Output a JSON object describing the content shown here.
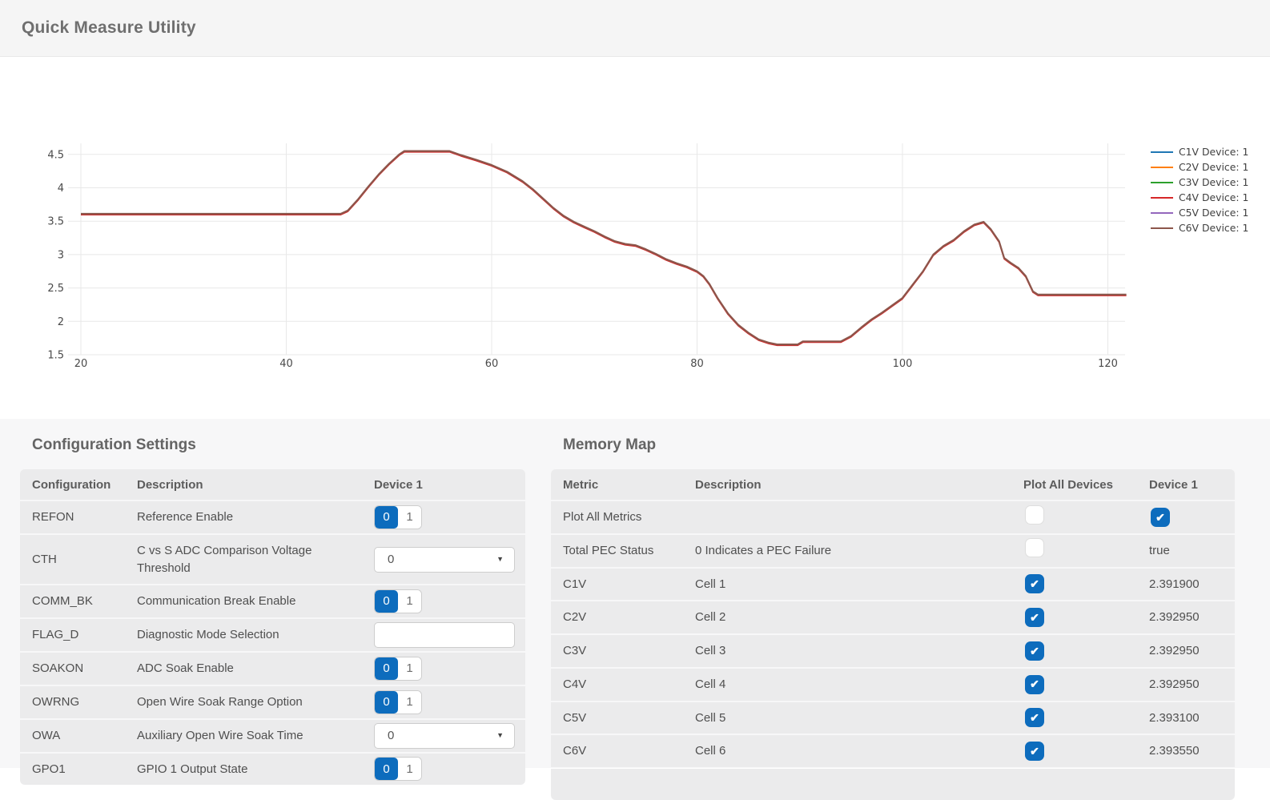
{
  "header": {
    "title": "Quick Measure Utility"
  },
  "chart_data": {
    "type": "line",
    "title": "",
    "xlabel": "",
    "ylabel": "",
    "x_ticks": [
      20,
      40,
      60,
      80,
      100,
      120
    ],
    "y_ticks": [
      1.5,
      2,
      2.5,
      3,
      3.5,
      4,
      4.5
    ],
    "xlim": [
      18.8,
      122
    ],
    "ylim": [
      1.5,
      4.73
    ],
    "grid": true,
    "legend_position": "right",
    "note": "Six series (C1V..C6V) overlap almost exactly; visible top trace is C6V (brown).",
    "series": [
      {
        "name": "C1V Device: 1",
        "color": "#1f77b4"
      },
      {
        "name": "C2V Device: 1",
        "color": "#ff7f0e"
      },
      {
        "name": "C3V Device: 1",
        "color": "#2ca02c"
      },
      {
        "name": "C4V Device: 1",
        "color": "#d62728"
      },
      {
        "name": "C5V Device: 1",
        "color": "#9467bd"
      },
      {
        "name": "C6V Device: 1",
        "color": "#8c564b"
      }
    ],
    "x": [
      20,
      45.3,
      46,
      47,
      48,
      49,
      50,
      51,
      51.5,
      55.9,
      57,
      58.5,
      60,
      61.5,
      63,
      64,
      65,
      66,
      67,
      68,
      69,
      70,
      71,
      72,
      73,
      74,
      75,
      76,
      77,
      78,
      79,
      80,
      80.6,
      81.2,
      82,
      83,
      84,
      85,
      86,
      87,
      87.8,
      89.8,
      90.3,
      94,
      95,
      96,
      97,
      98,
      99,
      100,
      101,
      102,
      103,
      104,
      105,
      106,
      107,
      107.9,
      108.6,
      109.4,
      109.9,
      110.5,
      111.3,
      112,
      112.7,
      113.2,
      121.8
    ],
    "values": [
      3.61,
      3.61,
      3.66,
      3.83,
      4.02,
      4.2,
      4.36,
      4.5,
      4.55,
      4.55,
      4.49,
      4.42,
      4.34,
      4.24,
      4.1,
      3.98,
      3.84,
      3.7,
      3.58,
      3.49,
      3.42,
      3.35,
      3.27,
      3.2,
      3.16,
      3.14,
      3.08,
      3.01,
      2.93,
      2.87,
      2.82,
      2.75,
      2.68,
      2.56,
      2.35,
      2.12,
      1.95,
      1.83,
      1.73,
      1.68,
      1.655,
      1.655,
      1.7,
      1.7,
      1.78,
      1.91,
      2.03,
      2.13,
      2.24,
      2.35,
      2.55,
      2.75,
      3.0,
      3.13,
      3.22,
      3.35,
      3.45,
      3.49,
      3.38,
      3.2,
      2.95,
      2.88,
      2.8,
      2.68,
      2.45,
      2.4,
      2.4
    ]
  },
  "config_table": {
    "title": "Configuration Settings",
    "columns": [
      "Configuration",
      "Description",
      "Device 1"
    ],
    "rows": [
      {
        "name": "REFON",
        "desc": "Reference Enable",
        "control": "toggle",
        "options": [
          "0",
          "1"
        ],
        "selected": "0"
      },
      {
        "name": "CTH",
        "desc": "C vs S ADC Comparison Voltage Threshold",
        "control": "dropdown",
        "value": "0"
      },
      {
        "name": "COMM_BK",
        "desc": "Communication Break Enable",
        "control": "toggle",
        "options": [
          "0",
          "1"
        ],
        "selected": "0"
      },
      {
        "name": "FLAG_D",
        "desc": "Diagnostic Mode Selection",
        "control": "input",
        "value": ""
      },
      {
        "name": "SOAKON",
        "desc": "ADC Soak Enable",
        "control": "toggle",
        "options": [
          "0",
          "1"
        ],
        "selected": "0"
      },
      {
        "name": "OWRNG",
        "desc": "Open Wire Soak Range Option",
        "control": "toggle",
        "options": [
          "0",
          "1"
        ],
        "selected": "0"
      },
      {
        "name": "OWA",
        "desc": "Auxiliary Open Wire Soak Time",
        "control": "dropdown",
        "value": "0"
      },
      {
        "name": "GPO1",
        "desc": "GPIO 1 Output State",
        "control": "toggle",
        "options": [
          "0",
          "1"
        ],
        "selected": "0"
      }
    ]
  },
  "memory_table": {
    "title": "Memory Map",
    "columns": [
      "Metric",
      "Description",
      "Plot All Devices",
      "Device 1"
    ],
    "rows": [
      {
        "metric": "Plot All Metrics",
        "desc": "",
        "plot_all": {
          "type": "checkbox",
          "checked": false
        },
        "device1": {
          "type": "checkbox",
          "checked": true
        }
      },
      {
        "metric": "Total PEC Status",
        "desc": "0 Indicates a PEC Failure",
        "plot_all": {
          "type": "checkbox",
          "checked": false
        },
        "device1": {
          "type": "text",
          "value": "true"
        }
      },
      {
        "metric": "C1V",
        "desc": "Cell 1",
        "plot_all": {
          "type": "checkbox",
          "checked": true
        },
        "device1": {
          "type": "text",
          "value": "2.391900"
        }
      },
      {
        "metric": "C2V",
        "desc": "Cell 2",
        "plot_all": {
          "type": "checkbox",
          "checked": true
        },
        "device1": {
          "type": "text",
          "value": "2.392950"
        }
      },
      {
        "metric": "C3V",
        "desc": "Cell 3",
        "plot_all": {
          "type": "checkbox",
          "checked": true
        },
        "device1": {
          "type": "text",
          "value": "2.392950"
        }
      },
      {
        "metric": "C4V",
        "desc": "Cell 4",
        "plot_all": {
          "type": "checkbox",
          "checked": true
        },
        "device1": {
          "type": "text",
          "value": "2.392950"
        }
      },
      {
        "metric": "C5V",
        "desc": "Cell 5",
        "plot_all": {
          "type": "checkbox",
          "checked": true
        },
        "device1": {
          "type": "text",
          "value": "2.393100"
        }
      },
      {
        "metric": "C6V",
        "desc": "Cell 6",
        "plot_all": {
          "type": "checkbox",
          "checked": true
        },
        "device1": {
          "type": "text",
          "value": "2.393550"
        }
      },
      {
        "metric": "",
        "desc": "",
        "partial": true
      }
    ]
  },
  "colors": {
    "accent_blue": "#0d6cbd",
    "row_bg": "#ebebec",
    "section_bg": "#f7f7f8",
    "grid_line": "#e8e8e8",
    "visible_trace": "#8c564b"
  },
  "icons": {
    "dropdown_caret": "▼",
    "checkmark": "✔"
  }
}
